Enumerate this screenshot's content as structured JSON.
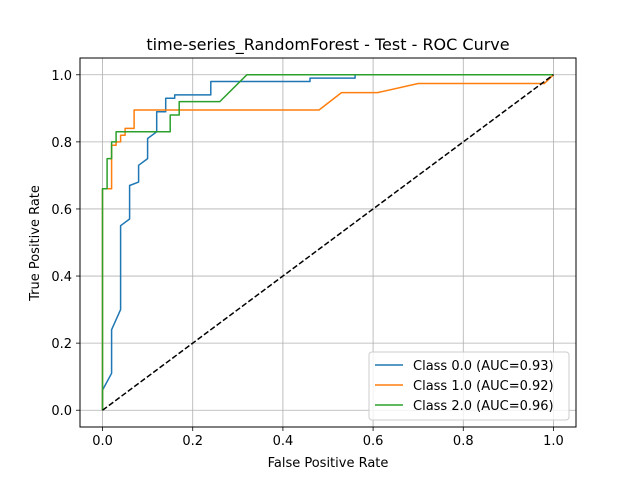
{
  "chart_data": {
    "type": "line",
    "title": "time-series_RandomForest - Test - ROC Curve",
    "xlabel": "False Positive Rate",
    "ylabel": "True Positive Rate",
    "xlim": [
      -0.05,
      1.05
    ],
    "ylim": [
      -0.05,
      1.05
    ],
    "xticks": [
      "0.0",
      "0.2",
      "0.4",
      "0.6",
      "0.8",
      "1.0"
    ],
    "yticks": [
      "0.0",
      "0.2",
      "0.4",
      "0.6",
      "0.8",
      "1.0"
    ],
    "grid": true,
    "legend_position": "lower-right",
    "series": [
      {
        "name": "Class 0.0 (AUC=0.93)",
        "color": "#1f77b4",
        "x": [
          0,
          0,
          0.02,
          0.02,
          0.04,
          0.04,
          0.06,
          0.06,
          0.08,
          0.08,
          0.1,
          0.1,
          0.12,
          0.12,
          0.14,
          0.14,
          0.16,
          0.16,
          0.24,
          0.24,
          0.44,
          0.46,
          0.46,
          0.56,
          0.56,
          1.0
        ],
        "y": [
          0,
          0.06,
          0.11,
          0.24,
          0.3,
          0.55,
          0.57,
          0.67,
          0.68,
          0.73,
          0.75,
          0.81,
          0.83,
          0.89,
          0.89,
          0.93,
          0.93,
          0.94,
          0.94,
          0.98,
          0.98,
          0.98,
          0.99,
          0.99,
          1.0,
          1.0
        ]
      },
      {
        "name": "Class 1.0 (AUC=0.92)",
        "color": "#ff7f0e",
        "x": [
          0,
          0,
          0.02,
          0.02,
          0.03,
          0.03,
          0.04,
          0.04,
          0.05,
          0.05,
          0.07,
          0.07,
          0.48,
          0.53,
          0.61,
          0.7,
          0.98,
          1.0
        ],
        "y": [
          0,
          0.66,
          0.66,
          0.79,
          0.79,
          0.8,
          0.8,
          0.82,
          0.82,
          0.84,
          0.84,
          0.895,
          0.895,
          0.947,
          0.947,
          0.974,
          0.974,
          1.0
        ]
      },
      {
        "name": "Class 2.0 (AUC=0.96)",
        "color": "#2ca02c",
        "x": [
          0,
          0,
          0.01,
          0.01,
          0.02,
          0.02,
          0.03,
          0.03,
          0.15,
          0.15,
          0.17,
          0.17,
          0.26,
          0.32,
          1.0
        ],
        "y": [
          0,
          0.66,
          0.66,
          0.75,
          0.75,
          0.8,
          0.8,
          0.83,
          0.83,
          0.88,
          0.88,
          0.92,
          0.92,
          1.0,
          1.0
        ]
      }
    ],
    "reference_line": {
      "style": "dashed",
      "color": "#000000",
      "x": [
        0,
        1
      ],
      "y": [
        0,
        1
      ]
    }
  }
}
